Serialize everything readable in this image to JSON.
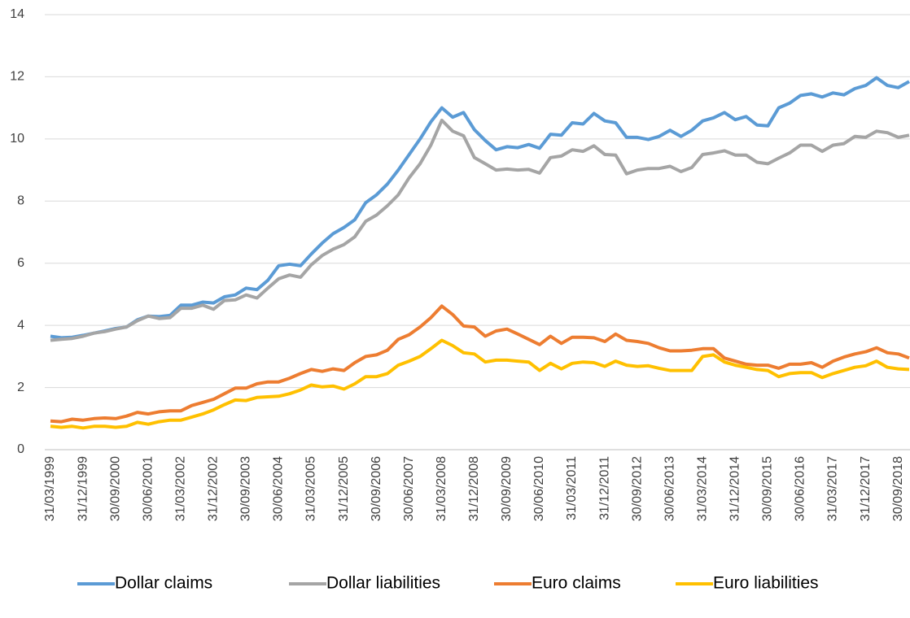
{
  "chart_data": {
    "type": "line",
    "categories": [
      "31/03/1999",
      null,
      null,
      "31/12/1999",
      null,
      null,
      "30/09/2000",
      null,
      null,
      "30/06/2001",
      null,
      null,
      "31/03/2002",
      null,
      null,
      "31/12/2002",
      null,
      null,
      "30/09/2003",
      null,
      null,
      "30/06/2004",
      null,
      null,
      "31/03/2005",
      null,
      null,
      "31/12/2005",
      null,
      null,
      "30/09/2006",
      null,
      null,
      "30/06/2007",
      null,
      null,
      "31/03/2008",
      null,
      null,
      "31/12/2008",
      null,
      null,
      "30/09/2009",
      null,
      null,
      "30/06/2010",
      null,
      null,
      "31/03/2011",
      null,
      null,
      "31/12/2011",
      null,
      null,
      "30/09/2012",
      null,
      null,
      "30/06/2013",
      null,
      null,
      "31/03/2014",
      null,
      null,
      "31/12/2014",
      null,
      null,
      "30/09/2015",
      null,
      null,
      "30/06/2016",
      null,
      null,
      "31/03/2017",
      null,
      null,
      "31/12/2017",
      null,
      null,
      "30/09/2018",
      null
    ],
    "series": [
      {
        "name": "Dollar claims",
        "color": "#5b9bd5",
        "values": [
          3.65,
          3.6,
          3.62,
          3.68,
          3.75,
          3.82,
          3.9,
          3.95,
          4.18,
          4.3,
          4.28,
          4.32,
          4.65,
          4.65,
          4.75,
          4.72,
          4.92,
          4.98,
          5.2,
          5.15,
          5.45,
          5.92,
          5.97,
          5.92,
          6.3,
          6.65,
          6.95,
          7.15,
          7.4,
          7.95,
          8.2,
          8.55,
          9.0,
          9.5,
          10.0,
          10.55,
          11.0,
          10.7,
          10.85,
          10.3,
          9.95,
          9.65,
          9.75,
          9.72,
          9.82,
          9.7,
          10.15,
          10.12,
          10.52,
          10.48,
          10.82,
          10.58,
          10.52,
          10.05,
          10.05,
          9.98,
          10.08,
          10.28,
          10.08,
          10.28,
          10.58,
          10.68,
          10.85,
          10.62,
          10.72,
          10.45,
          10.42,
          11.0,
          11.15,
          11.4,
          11.45,
          11.35,
          11.48,
          11.42,
          11.62,
          11.72,
          11.97,
          11.72,
          11.65,
          11.85
        ]
      },
      {
        "name": "Dollar liabilities",
        "color": "#a5a5a5",
        "values": [
          3.52,
          3.55,
          3.58,
          3.65,
          3.75,
          3.8,
          3.88,
          3.95,
          4.15,
          4.3,
          4.22,
          4.25,
          4.55,
          4.55,
          4.65,
          4.52,
          4.8,
          4.82,
          4.98,
          4.88,
          5.2,
          5.5,
          5.62,
          5.55,
          5.95,
          6.25,
          6.45,
          6.6,
          6.85,
          7.35,
          7.55,
          7.85,
          8.2,
          8.75,
          9.2,
          9.8,
          10.6,
          10.25,
          10.1,
          9.4,
          9.2,
          9.0,
          9.03,
          9.0,
          9.02,
          8.9,
          9.4,
          9.45,
          9.65,
          9.6,
          9.78,
          9.5,
          9.48,
          8.88,
          9.0,
          9.05,
          9.05,
          9.12,
          8.95,
          9.08,
          9.5,
          9.55,
          9.62,
          9.48,
          9.48,
          9.25,
          9.2,
          9.38,
          9.55,
          9.8,
          9.8,
          9.6,
          9.8,
          9.85,
          10.08,
          10.05,
          10.25,
          10.2,
          10.05,
          10.12
        ]
      },
      {
        "name": "Euro claims",
        "color": "#ed7d31",
        "values": [
          0.92,
          0.9,
          0.98,
          0.95,
          1.0,
          1.02,
          1.0,
          1.08,
          1.2,
          1.15,
          1.22,
          1.25,
          1.25,
          1.42,
          1.52,
          1.62,
          1.8,
          1.98,
          1.98,
          2.12,
          2.18,
          2.18,
          2.3,
          2.45,
          2.58,
          2.52,
          2.6,
          2.55,
          2.8,
          3.0,
          3.05,
          3.2,
          3.55,
          3.7,
          3.95,
          4.25,
          4.62,
          4.35,
          3.98,
          3.95,
          3.65,
          3.82,
          3.88,
          3.72,
          3.55,
          3.38,
          3.65,
          3.42,
          3.62,
          3.62,
          3.6,
          3.48,
          3.72,
          3.52,
          3.48,
          3.42,
          3.28,
          3.18,
          3.18,
          3.2,
          3.25,
          3.25,
          2.95,
          2.85,
          2.75,
          2.72,
          2.72,
          2.62,
          2.75,
          2.75,
          2.8,
          2.65,
          2.85,
          2.98,
          3.08,
          3.15,
          3.28,
          3.12,
          3.08,
          2.95
        ]
      },
      {
        "name": "Euro liabilities",
        "color": "#ffc000",
        "values": [
          0.75,
          0.72,
          0.75,
          0.7,
          0.75,
          0.75,
          0.72,
          0.75,
          0.88,
          0.82,
          0.9,
          0.95,
          0.95,
          1.05,
          1.15,
          1.28,
          1.45,
          1.6,
          1.58,
          1.68,
          1.7,
          1.72,
          1.8,
          1.92,
          2.08,
          2.02,
          2.05,
          1.95,
          2.12,
          2.35,
          2.35,
          2.45,
          2.72,
          2.85,
          3.0,
          3.25,
          3.52,
          3.35,
          3.12,
          3.08,
          2.82,
          2.88,
          2.88,
          2.85,
          2.82,
          2.55,
          2.78,
          2.6,
          2.78,
          2.82,
          2.8,
          2.68,
          2.85,
          2.72,
          2.68,
          2.7,
          2.62,
          2.55,
          2.55,
          2.55,
          3.0,
          3.05,
          2.82,
          2.72,
          2.65,
          2.58,
          2.55,
          2.35,
          2.45,
          2.48,
          2.48,
          2.32,
          2.45,
          2.55,
          2.65,
          2.7,
          2.85,
          2.65,
          2.6,
          2.58
        ]
      }
    ],
    "ylim": [
      0,
      14
    ],
    "yticks": [
      0,
      2,
      4,
      6,
      8,
      10,
      12,
      14
    ],
    "grid": true,
    "legend": "bottom"
  }
}
